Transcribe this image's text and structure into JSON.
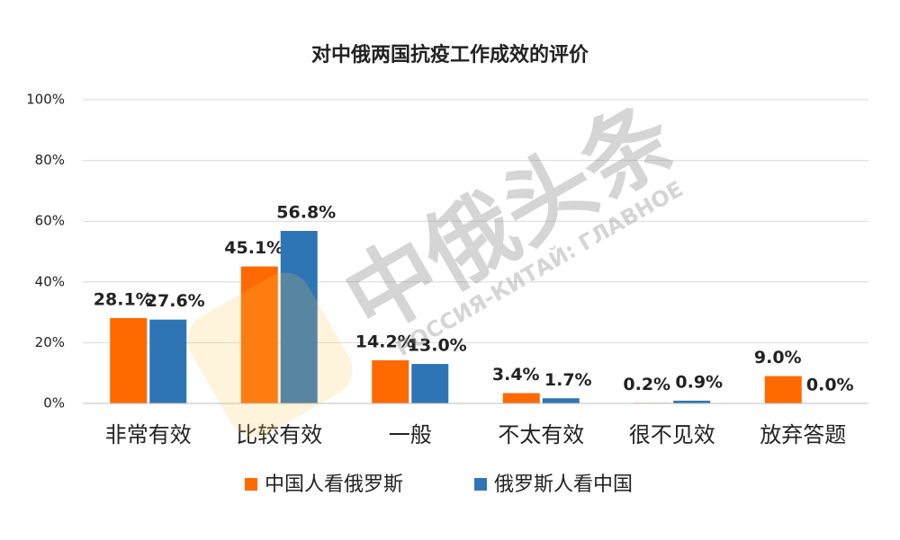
{
  "chart_data": {
    "type": "bar",
    "title": "对中俄两国抗疫工作成效的评价",
    "categories": [
      "非常有效",
      "比较有效",
      "一般",
      "不太有效",
      "很不见效",
      "放弃答题"
    ],
    "series": [
      {
        "name": "中国人看俄罗斯",
        "color": "#ff6a00",
        "values": [
          28.1,
          45.1,
          14.2,
          3.4,
          0.2,
          9.0
        ],
        "value_labels": [
          "28.1%",
          "45.1%",
          "14.2%",
          "3.4%",
          "0.2%",
          "9.0%"
        ]
      },
      {
        "name": "俄罗斯人看中国",
        "color": "#2e75b6",
        "values": [
          27.6,
          56.8,
          13.0,
          1.7,
          0.9,
          0.0
        ],
        "value_labels": [
          "27.6%",
          "56.8%",
          "13.0%",
          "1.7%",
          "0.9%",
          "0.0%"
        ]
      }
    ],
    "ylim": [
      0,
      100
    ],
    "yticks": [
      {
        "value": 0,
        "label": "0%"
      },
      {
        "value": 20,
        "label": "20%"
      },
      {
        "value": 40,
        "label": "40%"
      },
      {
        "value": 60,
        "label": "60%"
      },
      {
        "value": 80,
        "label": "80%"
      },
      {
        "value": 100,
        "label": "100%"
      }
    ],
    "grid": true,
    "legend": "bottom",
    "watermark": {
      "main": "中俄头条",
      "sub": "РОССИЯ-КИТАЙ: ГЛАВНОЕ"
    }
  }
}
